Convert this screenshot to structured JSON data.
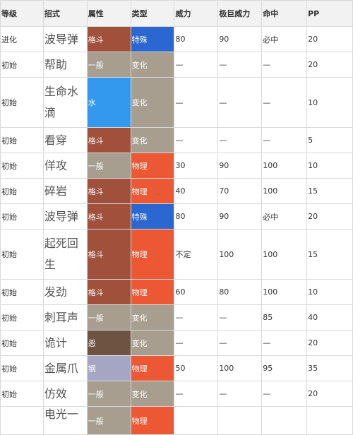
{
  "headers": [
    "等级",
    "招式",
    "属性",
    "类型",
    "威力",
    "极巨威力",
    "命中",
    "PP"
  ],
  "type_colors": {
    "格斗": "#a1503b",
    "一般": "#a79e8f",
    "水": "#3399ee",
    "恶": "#6e5242",
    "钢": "#a5a5c4"
  },
  "category_colors": {
    "特殊": "#2b67d0",
    "变化": "#a79e8f",
    "物理": "#ec5734"
  },
  "rows": [
    {
      "level": "进化",
      "move": "波导弹",
      "type": "格斗",
      "category": "特殊",
      "power": "80",
      "max_power": "90",
      "accuracy": "必中",
      "pp": "20"
    },
    {
      "level": "初始",
      "move": "帮助",
      "type": "一般",
      "category": "变化",
      "power": "—",
      "max_power": "—",
      "accuracy": "—",
      "pp": "20"
    },
    {
      "level": "初始",
      "move": "生命水滴",
      "type": "水",
      "category": "变化",
      "power": "—",
      "max_power": "—",
      "accuracy": "—",
      "pp": "10"
    },
    {
      "level": "初始",
      "move": "看穿",
      "type": "格斗",
      "category": "变化",
      "power": "—",
      "max_power": "—",
      "accuracy": "—",
      "pp": "5"
    },
    {
      "level": "初始",
      "move": "佯攻",
      "type": "一般",
      "category": "物理",
      "power": "30",
      "max_power": "90",
      "accuracy": "100",
      "pp": "10"
    },
    {
      "level": "初始",
      "move": "碎岩",
      "type": "格斗",
      "category": "物理",
      "power": "40",
      "max_power": "70",
      "accuracy": "100",
      "pp": "15"
    },
    {
      "level": "初始",
      "move": "波导弹",
      "type": "格斗",
      "category": "特殊",
      "power": "80",
      "max_power": "90",
      "accuracy": "必中",
      "pp": "20"
    },
    {
      "level": "初始",
      "move": "起死回生",
      "type": "格斗",
      "category": "物理",
      "power": "不定",
      "max_power": "100",
      "accuracy": "100",
      "pp": "15"
    },
    {
      "level": "初始",
      "move": "发劲",
      "type": "格斗",
      "category": "物理",
      "power": "60",
      "max_power": "80",
      "accuracy": "100",
      "pp": "10"
    },
    {
      "level": "初始",
      "move": "刺耳声",
      "type": "一般",
      "category": "变化",
      "power": "—",
      "max_power": "—",
      "accuracy": "85",
      "pp": "40"
    },
    {
      "level": "初始",
      "move": "诡计",
      "type": "恶",
      "category": "变化",
      "power": "—",
      "max_power": "—",
      "accuracy": "—",
      "pp": "20"
    },
    {
      "level": "初始",
      "move": "金属爪",
      "type": "钢",
      "category": "物理",
      "power": "50",
      "max_power": "100",
      "accuracy": "95",
      "pp": "35"
    },
    {
      "level": "初始",
      "move": "仿效",
      "type": "一般",
      "category": "变化",
      "power": "—",
      "max_power": "—",
      "accuracy": "—",
      "pp": "20"
    },
    {
      "level": "",
      "move": "电光一",
      "type": "一般",
      "category": "物理",
      "power": "",
      "max_power": "",
      "accuracy": "",
      "pp": ""
    }
  ]
}
